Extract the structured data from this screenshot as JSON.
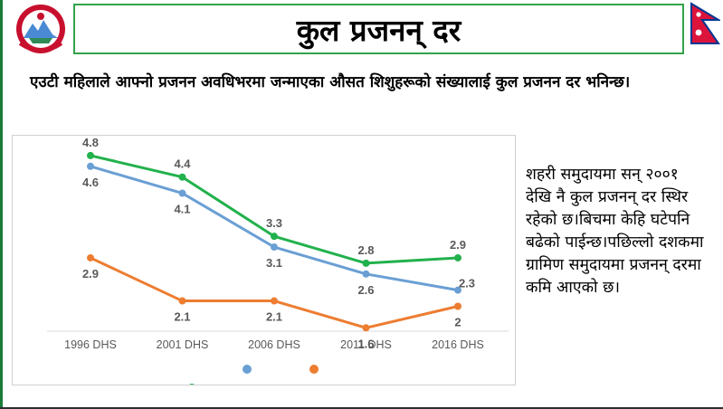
{
  "header": {
    "title": "कुल प्रजनन् दर",
    "emblem_icon": "nepal-government-emblem-icon",
    "flag_icon": "nepal-flag-icon"
  },
  "definition": "एउटी महिलाले आफ्नो प्रजनन अवधिभरमा जन्माएका औसत शिशुहरूको संख्यालाई कुल प्रजनन दर भनिन्छ।",
  "side_note": "शहरी समुदायमा सन् २००१ देखि नै कुल प्रजनन् दर स्थिर रहेको छ।बिचमा केहि घटेपनि बढेको पाईन्छ।पछिल्लो दशकमा ग्रामिण समुदायमा प्रजनन् दरमा कमि आएको छ।",
  "colors": {
    "accent_green": "#33a24a",
    "series_green": "#22b14c",
    "series_blue": "#6a9fd4",
    "series_orange": "#ed7d31"
  },
  "chart_data": {
    "type": "line",
    "categories": [
      "1996 DHS",
      "2001 DHS",
      "2006 DHS",
      "2011 DHS",
      "2016 DHS"
    ],
    "ylim": [
      1,
      5
    ],
    "grid": false,
    "legend": "bottom",
    "series": [
      {
        "color": "#22b14c",
        "values": [
          4.8,
          4.4,
          3.3,
          2.8,
          2.9
        ],
        "labels": [
          "4.8",
          "4.4",
          "3.3",
          "2.8",
          "2.9"
        ],
        "label_pos": "above"
      },
      {
        "color": "#6a9fd4",
        "values": [
          4.6,
          4.1,
          3.1,
          2.6,
          2.3
        ],
        "labels": [
          "4.6",
          "4.1",
          "3.1",
          "2.6",
          "2.3"
        ],
        "label_pos": "below"
      },
      {
        "color": "#ed7d31",
        "values": [
          2.9,
          2.1,
          2.1,
          1.6,
          2
        ],
        "labels": [
          "2.9",
          "2.1",
          "2.1",
          "1.6",
          "2"
        ],
        "label_pos": "below"
      }
    ]
  }
}
